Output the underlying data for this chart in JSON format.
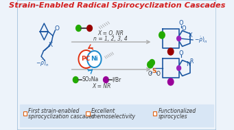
{
  "title": "Strain-Enabled Radical Spirocyclization Cascades",
  "title_color": "#d42020",
  "bg_color": "#edf3fa",
  "border_color": "#a8c4dd",
  "bottom_bg": "#d8e6f5",
  "arrow_color": "#aaaaaa",
  "blue_color": "#1a55a0",
  "orange_color": "#e06010",
  "green_color": "#22aa00",
  "purple_color": "#990099",
  "dark_red": "#990000",
  "pc_color": "#e03010",
  "ni_color": "#1888cc",
  "label1": "First strain-enabled\nspirocyclization cascades",
  "label2": "Excellent\nchemoselectivity",
  "label3": "Functionalized\nspirocycles",
  "text_xo_nr": "X = O, NR\nn = 1, 2, 3, 4",
  "text_x_nr": "X = NR",
  "so2na_label": "SO₂Na",
  "ibr_label": "I/Br"
}
